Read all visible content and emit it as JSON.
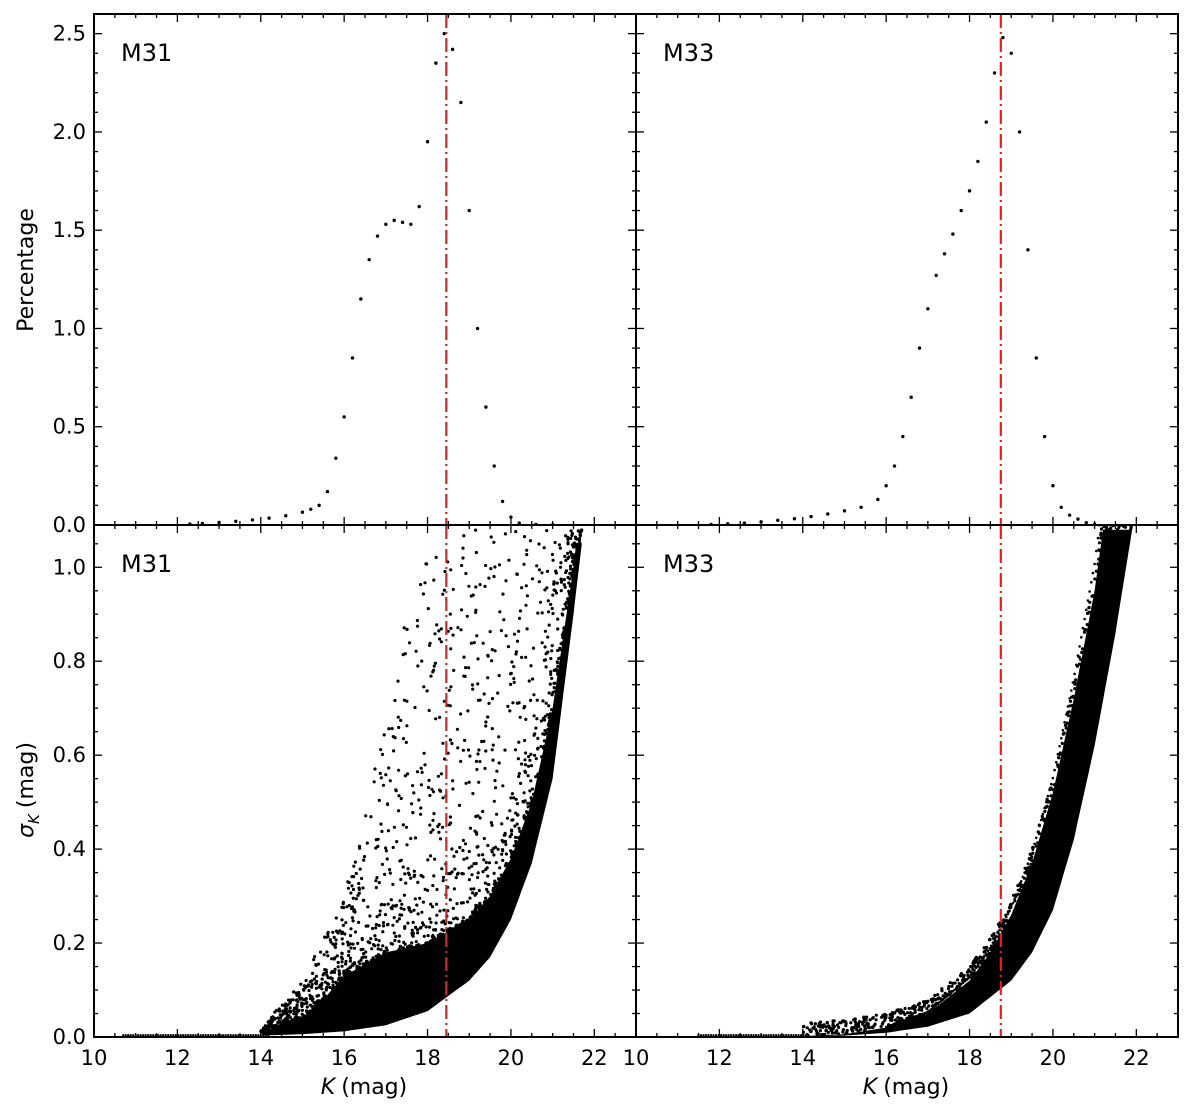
{
  "figure": {
    "x_axis_label": "(mag)",
    "x_axis_symbol": "K",
    "y_axis_label_top": "Percentage",
    "y_axis_label_bottom": "(mag)",
    "y_axis_symbol_bottom": "σ",
    "y_axis_symbol_bottom_sub": "K",
    "point_color": "#000000",
    "line_color": "#d62728"
  },
  "chart_data": [
    {
      "type": "scatter",
      "panel": "top-left",
      "label": "M31",
      "xlim": [
        10,
        23
      ],
      "ylim": [
        0,
        2.6
      ],
      "x_ticks": [
        "10",
        "12",
        "14",
        "16",
        "18",
        "20",
        "22"
      ],
      "y_ticks": [
        "0.0",
        "0.5",
        "1.0",
        "1.5",
        "2.0",
        "2.5"
      ],
      "ylabel": "Percentage",
      "vline_x": 18.45,
      "series": [
        {
          "points": [
            [
              12.3,
              0.005
            ],
            [
              12.6,
              0.008
            ],
            [
              13.0,
              0.013
            ],
            [
              13.4,
              0.019
            ],
            [
              13.8,
              0.026
            ],
            [
              14.2,
              0.035
            ],
            [
              14.6,
              0.047
            ],
            [
              15.0,
              0.065
            ],
            [
              15.2,
              0.08
            ],
            [
              15.4,
              0.1
            ],
            [
              15.6,
              0.17
            ],
            [
              15.8,
              0.34
            ],
            [
              16.0,
              0.55
            ],
            [
              16.2,
              0.85
            ],
            [
              16.4,
              1.15
            ],
            [
              16.6,
              1.35
            ],
            [
              16.8,
              1.47
            ],
            [
              17.0,
              1.53
            ],
            [
              17.2,
              1.55
            ],
            [
              17.4,
              1.54
            ],
            [
              17.6,
              1.53
            ],
            [
              17.8,
              1.62
            ],
            [
              18.0,
              1.95
            ],
            [
              18.2,
              2.35
            ],
            [
              18.4,
              2.5
            ],
            [
              18.6,
              2.42
            ],
            [
              18.8,
              2.15
            ],
            [
              19.0,
              1.6
            ],
            [
              19.2,
              1.0
            ],
            [
              19.4,
              0.6
            ],
            [
              19.6,
              0.3
            ],
            [
              19.8,
              0.12
            ],
            [
              20.0,
              0.04
            ],
            [
              20.2,
              0.01
            ],
            [
              20.6,
              0.003
            ],
            [
              21.0,
              0.001
            ]
          ]
        }
      ]
    },
    {
      "type": "scatter",
      "panel": "top-right",
      "label": "M33",
      "xlim": [
        10,
        23
      ],
      "ylim": [
        0,
        2.6
      ],
      "x_ticks": [
        "10",
        "12",
        "14",
        "16",
        "18",
        "20",
        "22"
      ],
      "y_ticks": [
        "0.0",
        "0.5",
        "1.0",
        "1.5",
        "2.0",
        "2.5"
      ],
      "vline_x": 18.75,
      "series": [
        {
          "points": [
            [
              11.8,
              0.003
            ],
            [
              12.2,
              0.006
            ],
            [
              12.6,
              0.01
            ],
            [
              13.0,
              0.016
            ],
            [
              13.4,
              0.024
            ],
            [
              13.8,
              0.032
            ],
            [
              14.2,
              0.043
            ],
            [
              14.6,
              0.056
            ],
            [
              15.0,
              0.072
            ],
            [
              15.4,
              0.09
            ],
            [
              15.8,
              0.13
            ],
            [
              16.0,
              0.2
            ],
            [
              16.2,
              0.3
            ],
            [
              16.4,
              0.45
            ],
            [
              16.6,
              0.65
            ],
            [
              16.8,
              0.9
            ],
            [
              17.0,
              1.1
            ],
            [
              17.2,
              1.27
            ],
            [
              17.4,
              1.38
            ],
            [
              17.6,
              1.48
            ],
            [
              17.8,
              1.6
            ],
            [
              18.0,
              1.7
            ],
            [
              18.2,
              1.85
            ],
            [
              18.4,
              2.05
            ],
            [
              18.6,
              2.3
            ],
            [
              18.8,
              2.48
            ],
            [
              19.0,
              2.4
            ],
            [
              19.2,
              2.0
            ],
            [
              19.4,
              1.4
            ],
            [
              19.6,
              0.85
            ],
            [
              19.8,
              0.45
            ],
            [
              20.0,
              0.2
            ],
            [
              20.2,
              0.09
            ],
            [
              20.4,
              0.05
            ],
            [
              20.6,
              0.03
            ],
            [
              20.8,
              0.012
            ],
            [
              21.0,
              0.004
            ]
          ]
        }
      ]
    },
    {
      "type": "scatter",
      "panel": "bottom-left",
      "label": "M31",
      "xlim": [
        10,
        23
      ],
      "ylim": [
        0,
        1.09
      ],
      "x_ticks": [
        "10",
        "12",
        "14",
        "16",
        "18",
        "20",
        "22"
      ],
      "y_ticks": [
        "0.0",
        "0.2",
        "0.4",
        "0.6",
        "0.8",
        "1.0"
      ],
      "xlabel": "K (mag)",
      "ylabel": "σK (mag)",
      "vline_x": 18.45,
      "density_x_range": [
        10.7,
        21.7
      ],
      "lower_envelope": [
        [
          14.0,
          0.003
        ],
        [
          15.0,
          0.006
        ],
        [
          16.0,
          0.012
        ],
        [
          17.0,
          0.025
        ],
        [
          18.0,
          0.055
        ],
        [
          19.0,
          0.12
        ],
        [
          19.5,
          0.17
        ],
        [
          20.0,
          0.25
        ],
        [
          20.5,
          0.37
        ],
        [
          21.0,
          0.55
        ],
        [
          21.5,
          0.9
        ],
        [
          21.7,
          1.05
        ]
      ],
      "dense_upper_envelope": [
        [
          14.0,
          0.01
        ],
        [
          15.0,
          0.04
        ],
        [
          15.5,
          0.08
        ],
        [
          16.0,
          0.13
        ],
        [
          17.0,
          0.18
        ],
        [
          18.0,
          0.2
        ],
        [
          19.0,
          0.25
        ],
        [
          19.5,
          0.3
        ],
        [
          20.0,
          0.38
        ],
        [
          20.5,
          0.5
        ],
        [
          21.0,
          0.7
        ],
        [
          21.5,
          1.0
        ],
        [
          21.7,
          1.08
        ]
      ],
      "outlier_upper_envelope": [
        [
          14.0,
          0.02
        ],
        [
          15.0,
          0.12
        ],
        [
          16.0,
          0.3
        ],
        [
          16.5,
          0.48
        ],
        [
          17.0,
          0.7
        ],
        [
          17.5,
          0.9
        ],
        [
          18.0,
          1.02
        ],
        [
          18.5,
          1.06
        ],
        [
          19.0,
          1.08
        ],
        [
          20.0,
          1.08
        ],
        [
          21.0,
          1.08
        ]
      ]
    },
    {
      "type": "scatter",
      "panel": "bottom-right",
      "label": "M33",
      "xlim": [
        10,
        23
      ],
      "ylim": [
        0,
        1.09
      ],
      "x_ticks": [
        "10",
        "12",
        "14",
        "16",
        "18",
        "20",
        "22"
      ],
      "y_ticks": [
        "0.0",
        "0.2",
        "0.4",
        "0.6",
        "0.8",
        "1.0"
      ],
      "xlabel": "K (mag)",
      "vline_x": 18.75,
      "density_x_range": [
        11.5,
        21.9
      ],
      "lower_envelope": [
        [
          14.0,
          0.001
        ],
        [
          15.0,
          0.003
        ],
        [
          16.0,
          0.009
        ],
        [
          17.0,
          0.022
        ],
        [
          18.0,
          0.05
        ],
        [
          19.0,
          0.12
        ],
        [
          19.5,
          0.18
        ],
        [
          20.0,
          0.27
        ],
        [
          20.5,
          0.42
        ],
        [
          21.0,
          0.62
        ],
        [
          21.5,
          0.86
        ],
        [
          21.9,
          1.08
        ]
      ],
      "upper_envelope": [
        [
          14.0,
          0.002
        ],
        [
          15.0,
          0.006
        ],
        [
          16.0,
          0.02
        ],
        [
          17.0,
          0.05
        ],
        [
          18.0,
          0.12
        ],
        [
          18.5,
          0.18
        ],
        [
          19.0,
          0.26
        ],
        [
          19.5,
          0.37
        ],
        [
          20.0,
          0.52
        ],
        [
          20.5,
          0.72
        ],
        [
          21.0,
          0.95
        ],
        [
          21.2,
          1.08
        ]
      ]
    }
  ]
}
